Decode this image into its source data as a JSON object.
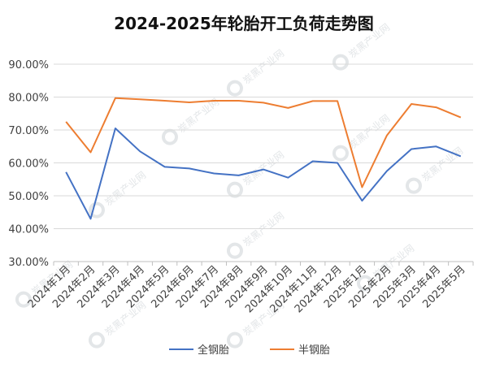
{
  "chart_data": {
    "type": "line",
    "title": "2024-2025年轮胎开工负荷走势图",
    "xlabel": "",
    "ylabel": "",
    "categories": [
      "2024年1月",
      "2024年2月",
      "2024年3月",
      "2024年4月",
      "2024年5月",
      "2024年6月",
      "2024年7月",
      "2024年8月",
      "2024年9月",
      "2024年10月",
      "2024年11月",
      "2024年12月",
      "2025年1月",
      "2025年2月",
      "2025年3月",
      "2025年4月",
      "2025年5月"
    ],
    "ylim": [
      30,
      90
    ],
    "yticks": [
      "90.00%",
      "80.00%",
      "70.00%",
      "60.00%",
      "50.00%",
      "40.00%",
      "30.00%"
    ],
    "ytick_values": [
      90,
      80,
      70,
      60,
      50,
      40,
      30
    ],
    "grid": true,
    "legend_position": "bottom",
    "series": [
      {
        "name": "全钢胎",
        "color": "#4472C4",
        "values": [
          57.2,
          43.0,
          70.5,
          63.5,
          58.8,
          58.3,
          56.8,
          56.2,
          58.0,
          55.5,
          60.5,
          60.0,
          48.5,
          57.5,
          64.2,
          65.0,
          62.0
        ]
      },
      {
        "name": "半钢胎",
        "color": "#ED7D31",
        "values": [
          72.5,
          63.2,
          79.7,
          79.3,
          78.9,
          78.4,
          78.9,
          78.9,
          78.3,
          76.7,
          78.8,
          78.8,
          52.6,
          68.3,
          77.9,
          76.9,
          73.8
        ]
      }
    ]
  },
  "watermark": "炭黑产业网"
}
